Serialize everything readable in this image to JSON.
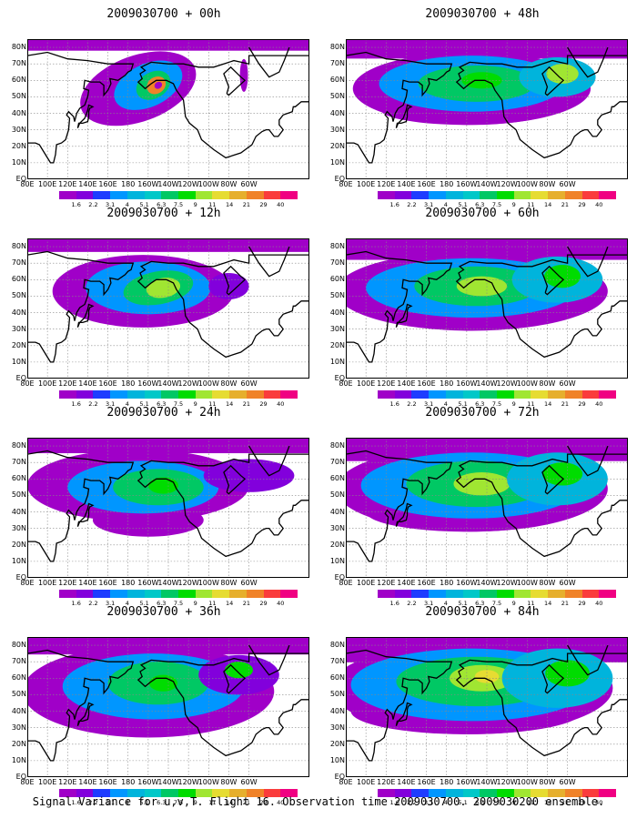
{
  "figure": {
    "caption": "Signal Variance for u,v,T. Flight 16. Observation time 2009030700. 2009030200 ensemble."
  },
  "lat_labels": [
    "80N",
    "70N",
    "60N",
    "50N",
    "40N",
    "30N",
    "20N",
    "10N",
    "EQ"
  ],
  "lon_labels": [
    "80E",
    "100E",
    "120E",
    "140E",
    "160E",
    "180",
    "160W",
    "140W",
    "120W",
    "100W",
    "80W",
    "60W"
  ],
  "colorbar": {
    "labels": [
      "1.6",
      "2.2",
      "3.1",
      "4",
      "5.1",
      "6.3",
      "7.5",
      "9",
      "11",
      "14",
      "21",
      "29",
      "40"
    ],
    "colors": [
      "#a000c8",
      "#8200dc",
      "#1e3cff",
      "#0096ff",
      "#00b4dc",
      "#00c8c8",
      "#00c864",
      "#00dc00",
      "#a0e632",
      "#e6dc32",
      "#e6af2d",
      "#f08228",
      "#fa3c3c",
      "#f00082"
    ]
  },
  "panels": [
    {
      "title": "2009030700 + 00h",
      "level": 0
    },
    {
      "title": "2009030700 + 48h",
      "level": 4
    },
    {
      "title": "2009030700 + 12h",
      "level": 1
    },
    {
      "title": "2009030700 + 60h",
      "level": 5
    },
    {
      "title": "2009030700 + 24h",
      "level": 2
    },
    {
      "title": "2009030700 + 72h",
      "level": 6
    },
    {
      "title": "2009030700 + 36h",
      "level": 3
    },
    {
      "title": "2009030700 + 84h",
      "level": 7
    }
  ]
}
